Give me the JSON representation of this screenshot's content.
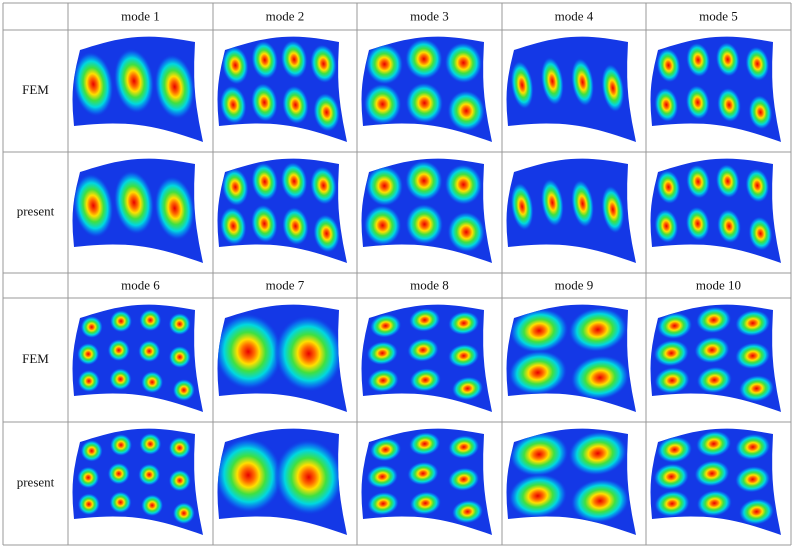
{
  "blocks": [
    {
      "modes": [
        "mode 1",
        "mode 2",
        "mode 3",
        "mode 4",
        "mode 5"
      ],
      "rows": [
        "FEM",
        "present"
      ]
    },
    {
      "modes": [
        "mode 6",
        "mode 7",
        "mode 8",
        "mode 9",
        "mode 10"
      ],
      "rows": [
        "FEM",
        "present"
      ]
    }
  ]
}
